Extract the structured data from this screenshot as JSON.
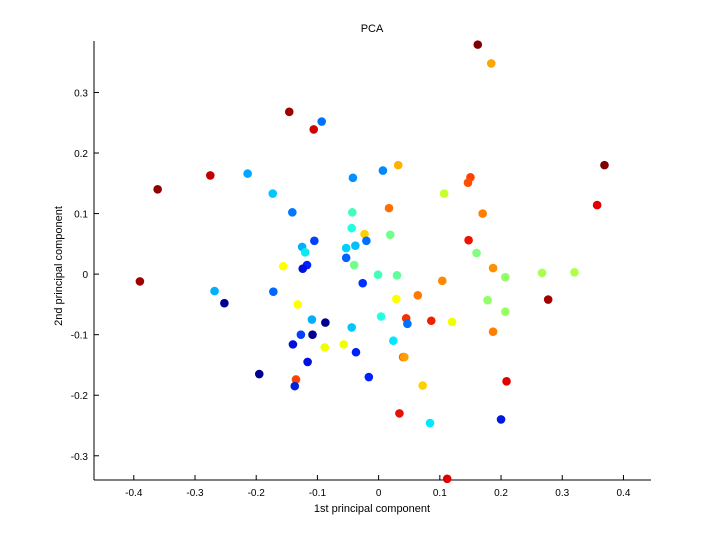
{
  "chart_data": {
    "type": "scatter",
    "title": "PCA",
    "xlabel": "1st principal component",
    "ylabel": "2nd principal component",
    "xlim": [
      -0.465,
      0.445
    ],
    "ylim": [
      -0.34,
      0.385
    ],
    "xticks": [
      -0.4,
      -0.3,
      -0.2,
      -0.1,
      0,
      0.1,
      0.2,
      0.3,
      0.4
    ],
    "xtick_labels": [
      "-0.4",
      "-0.3",
      "-0.2",
      "-0.1",
      "0",
      "0.1",
      "0.2",
      "0.3",
      "0.4"
    ],
    "yticks": [
      -0.3,
      -0.2,
      -0.1,
      0,
      0.1,
      0.2,
      0.3
    ],
    "ytick_labels": [
      "-0.3",
      "-0.2",
      "-0.1",
      "0",
      "0.1",
      "0.2",
      "0.3"
    ],
    "grid": false,
    "colormap": "jet",
    "points": [
      {
        "x": 0.162,
        "y": 0.379,
        "color": "#800000"
      },
      {
        "x": 0.184,
        "y": 0.348,
        "color": "#ffa500"
      },
      {
        "x": -0.146,
        "y": 0.268,
        "color": "#a00000"
      },
      {
        "x": -0.093,
        "y": 0.252,
        "color": "#0070ff"
      },
      {
        "x": -0.106,
        "y": 0.239,
        "color": "#d00000"
      },
      {
        "x": 0.369,
        "y": 0.18,
        "color": "#800000"
      },
      {
        "x": 0.032,
        "y": 0.18,
        "color": "#ffb000"
      },
      {
        "x": 0.007,
        "y": 0.171,
        "color": "#0088ff"
      },
      {
        "x": -0.214,
        "y": 0.166,
        "color": "#00a8ff"
      },
      {
        "x": -0.275,
        "y": 0.163,
        "color": "#c00000"
      },
      {
        "x": 0.15,
        "y": 0.16,
        "color": "#ff4000"
      },
      {
        "x": -0.042,
        "y": 0.159,
        "color": "#0090ff"
      },
      {
        "x": 0.146,
        "y": 0.151,
        "color": "#ff5000"
      },
      {
        "x": -0.361,
        "y": 0.14,
        "color": "#900000"
      },
      {
        "x": 0.107,
        "y": 0.133,
        "color": "#c8ff30"
      },
      {
        "x": -0.173,
        "y": 0.133,
        "color": "#00c8ff"
      },
      {
        "x": 0.357,
        "y": 0.114,
        "color": "#e00000"
      },
      {
        "x": 0.017,
        "y": 0.109,
        "color": "#ff7000"
      },
      {
        "x": -0.141,
        "y": 0.102,
        "color": "#0078ff"
      },
      {
        "x": -0.043,
        "y": 0.102,
        "color": "#40ffb8"
      },
      {
        "x": 0.17,
        "y": 0.1,
        "color": "#ff8000"
      },
      {
        "x": -0.044,
        "y": 0.076,
        "color": "#20ffe0"
      },
      {
        "x": 0.019,
        "y": 0.065,
        "color": "#70ff88"
      },
      {
        "x": -0.023,
        "y": 0.066,
        "color": "#ffd000"
      },
      {
        "x": 0.147,
        "y": 0.056,
        "color": "#f01000"
      },
      {
        "x": -0.105,
        "y": 0.055,
        "color": "#0040ff"
      },
      {
        "x": -0.02,
        "y": 0.055,
        "color": "#0070ff"
      },
      {
        "x": -0.125,
        "y": 0.045,
        "color": "#00b0ff"
      },
      {
        "x": -0.053,
        "y": 0.043,
        "color": "#00d0ff"
      },
      {
        "x": -0.038,
        "y": 0.047,
        "color": "#00c0ff"
      },
      {
        "x": -0.12,
        "y": 0.036,
        "color": "#10e8f0"
      },
      {
        "x": 0.16,
        "y": 0.035,
        "color": "#80ff80"
      },
      {
        "x": -0.053,
        "y": 0.027,
        "color": "#0060ff"
      },
      {
        "x": -0.117,
        "y": 0.015,
        "color": "#0020ff"
      },
      {
        "x": -0.156,
        "y": 0.013,
        "color": "#ffff00"
      },
      {
        "x": -0.04,
        "y": 0.015,
        "color": "#70ff88"
      },
      {
        "x": -0.124,
        "y": 0.009,
        "color": "#0010e0"
      },
      {
        "x": 0.187,
        "y": 0.01,
        "color": "#ff9000"
      },
      {
        "x": 0.267,
        "y": 0.002,
        "color": "#a8ff50"
      },
      {
        "x": 0.32,
        "y": 0.003,
        "color": "#b0ff48"
      },
      {
        "x": -0.001,
        "y": -0.001,
        "color": "#40ffb8"
      },
      {
        "x": 0.03,
        "y": -0.002,
        "color": "#60ff98"
      },
      {
        "x": 0.207,
        "y": -0.005,
        "color": "#90ff68"
      },
      {
        "x": -0.39,
        "y": -0.012,
        "color": "#a00000"
      },
      {
        "x": 0.104,
        "y": -0.011,
        "color": "#ff8800"
      },
      {
        "x": -0.026,
        "y": -0.015,
        "color": "#0030ff"
      },
      {
        "x": -0.268,
        "y": -0.028,
        "color": "#00b0ff"
      },
      {
        "x": -0.172,
        "y": -0.029,
        "color": "#0068ff"
      },
      {
        "x": 0.064,
        "y": -0.035,
        "color": "#ff7800"
      },
      {
        "x": 0.029,
        "y": -0.041,
        "color": "#ffff00"
      },
      {
        "x": 0.277,
        "y": -0.042,
        "color": "#a00000"
      },
      {
        "x": 0.178,
        "y": -0.043,
        "color": "#90ff68"
      },
      {
        "x": -0.252,
        "y": -0.048,
        "color": "#000090"
      },
      {
        "x": -0.132,
        "y": -0.05,
        "color": "#ffff00"
      },
      {
        "x": 0.207,
        "y": -0.062,
        "color": "#98ff60"
      },
      {
        "x": 0.045,
        "y": -0.073,
        "color": "#f83000"
      },
      {
        "x": 0.004,
        "y": -0.07,
        "color": "#20ffe0"
      },
      {
        "x": -0.109,
        "y": -0.075,
        "color": "#00b0ff"
      },
      {
        "x": 0.086,
        "y": -0.077,
        "color": "#f02000"
      },
      {
        "x": 0.12,
        "y": -0.079,
        "color": "#f0ff00"
      },
      {
        "x": -0.087,
        "y": -0.08,
        "color": "#000090"
      },
      {
        "x": 0.047,
        "y": -0.082,
        "color": "#0070ff"
      },
      {
        "x": -0.044,
        "y": -0.088,
        "color": "#00c8ff"
      },
      {
        "x": 0.187,
        "y": -0.095,
        "color": "#ff8000"
      },
      {
        "x": -0.127,
        "y": -0.1,
        "color": "#0040ff"
      },
      {
        "x": -0.108,
        "y": -0.1,
        "color": "#000090"
      },
      {
        "x": 0.024,
        "y": -0.11,
        "color": "#00e8ff"
      },
      {
        "x": -0.14,
        "y": -0.116,
        "color": "#0010e0"
      },
      {
        "x": -0.057,
        "y": -0.116,
        "color": "#f0ff00"
      },
      {
        "x": -0.088,
        "y": -0.121,
        "color": "#f0ff00"
      },
      {
        "x": -0.037,
        "y": -0.129,
        "color": "#0020ff"
      },
      {
        "x": 0.04,
        "y": -0.137,
        "color": "#ff6000"
      },
      {
        "x": 0.042,
        "y": -0.137,
        "color": "#ffa000"
      },
      {
        "x": -0.116,
        "y": -0.145,
        "color": "#0010e0"
      },
      {
        "x": -0.195,
        "y": -0.165,
        "color": "#000090"
      },
      {
        "x": -0.016,
        "y": -0.17,
        "color": "#0020ff"
      },
      {
        "x": -0.135,
        "y": -0.174,
        "color": "#ff4000"
      },
      {
        "x": 0.209,
        "y": -0.177,
        "color": "#e00000"
      },
      {
        "x": 0.072,
        "y": -0.184,
        "color": "#ffd000"
      },
      {
        "x": -0.137,
        "y": -0.185,
        "color": "#0020e0"
      },
      {
        "x": 0.034,
        "y": -0.23,
        "color": "#e81000"
      },
      {
        "x": 0.2,
        "y": -0.24,
        "color": "#0018e0"
      },
      {
        "x": 0.084,
        "y": -0.246,
        "color": "#00e8ff"
      },
      {
        "x": 0.112,
        "y": -0.338,
        "color": "#e00000"
      }
    ]
  }
}
